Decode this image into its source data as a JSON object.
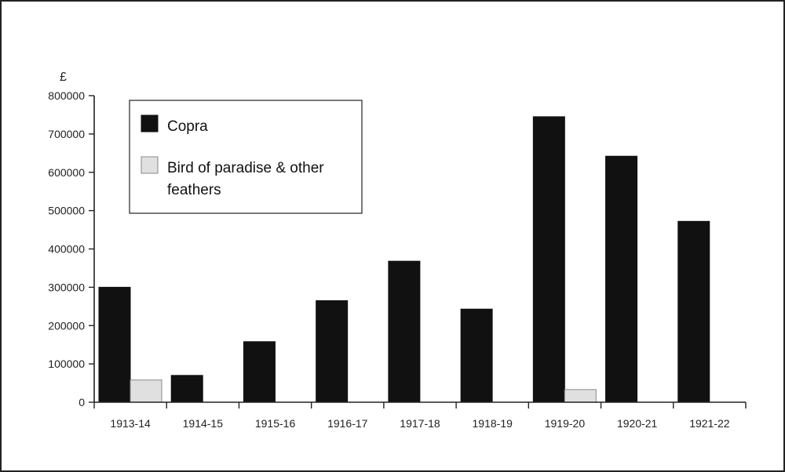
{
  "chart_data": {
    "type": "bar",
    "ylabel": "£",
    "ylim": [
      0,
      800000
    ],
    "yticks": [
      "0",
      "100000",
      "200000",
      "300000",
      "400000",
      "500000",
      "600000",
      "700000",
      "800000"
    ],
    "categories": [
      "1913-14",
      "1914-15",
      "1915-16",
      "1916-17",
      "1917-18",
      "1918-19",
      "1919-20",
      "1920-21",
      "1921-22"
    ],
    "series": [
      {
        "name": "Copra",
        "color": "#111111",
        "values": [
          300000,
          70000,
          158000,
          265000,
          368000,
          243000,
          745000,
          642000,
          472000
        ]
      },
      {
        "name": "Bird of paradise & other feathers",
        "color": "#e0e0e0",
        "values": [
          58000,
          0,
          0,
          0,
          0,
          0,
          33000,
          0,
          0
        ]
      }
    ],
    "legend": {
      "position": "top-left",
      "lines": [
        [
          "Copra"
        ],
        [
          "Bird of paradise & other",
          "feathers"
        ]
      ]
    },
    "grid": false
  }
}
